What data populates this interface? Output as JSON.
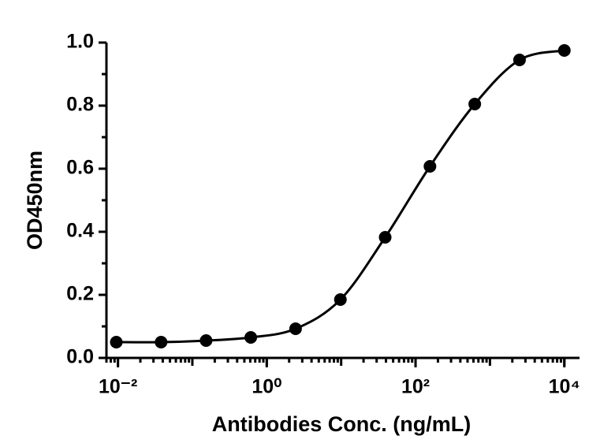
{
  "chart_data": {
    "type": "scatter",
    "x_label": "Antibodies Conc. (ng/mL)",
    "y_label": "OD450nm",
    "x_log": true,
    "fit_curve": true,
    "color": "#000000",
    "xlim": [
      0.007,
      16000
    ],
    "xticks": [
      {
        "value": 0.01,
        "label": "10⁻²"
      },
      {
        "value": 1,
        "label": "10⁰"
      },
      {
        "value": 100,
        "label": "10²"
      },
      {
        "value": 10000,
        "label": "10⁴"
      }
    ],
    "ylim": [
      0,
      1
    ],
    "yticks": [
      {
        "value": 0,
        "label": "0.0"
      },
      0.2,
      0.4,
      0.6,
      0.8,
      {
        "value": 1,
        "label": "1.0"
      }
    ],
    "x": [
      0.0095,
      0.038,
      0.153,
      0.61,
      2.44,
      9.77,
      39.06,
      156.25,
      625,
      2500,
      10000
    ],
    "y": [
      0.05,
      0.05,
      0.055,
      0.065,
      0.0925,
      0.185,
      0.3825,
      0.6075,
      0.805,
      0.945,
      0.975
    ]
  }
}
